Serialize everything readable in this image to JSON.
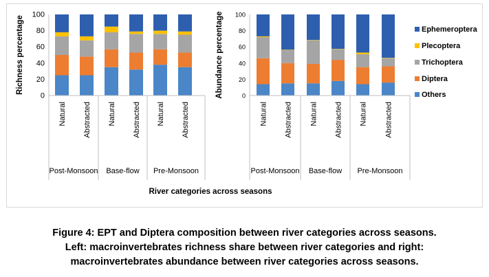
{
  "caption": {
    "line1": "Figure 4: EPT and Diptera composition between river categories across seasons.",
    "line2": "Left: macroinvertebrates richness share between river categories and right:",
    "line3": "macroinvertebrates abundance between river categories across seasons."
  },
  "xlabel": "River categories across seasons",
  "chart_data": [
    {
      "type": "bar",
      "stacked": true,
      "ylabel": "Richness percentage",
      "ylim": [
        0,
        100
      ],
      "yticks": [
        0,
        20,
        40,
        60,
        80,
        100
      ],
      "categories": [
        "Natural",
        "Abstracted",
        "Natural",
        "Abstracted",
        "Natural",
        "Abstracted"
      ],
      "groups": [
        "Post-Monsoon",
        "Base-flow",
        "Pre-Monsoon"
      ],
      "series": [
        {
          "name": "Others",
          "color": "#4a86c8",
          "values": [
            25,
            25,
            35,
            32,
            38,
            35
          ]
        },
        {
          "name": "Diptera",
          "color": "#ed7d31",
          "values": [
            25,
            23,
            22,
            21,
            19,
            18
          ]
        },
        {
          "name": "Trichoptera",
          "color": "#a5a5a5",
          "values": [
            23,
            20,
            21,
            23,
            19,
            22
          ]
        },
        {
          "name": "Plecoptera",
          "color": "#ffc000",
          "values": [
            5,
            5,
            7,
            3,
            4,
            4
          ]
        },
        {
          "name": "Ephemeroptera",
          "color": "#2e5fae",
          "values": [
            22,
            27,
            15,
            21,
            20,
            21
          ]
        }
      ]
    },
    {
      "type": "bar",
      "stacked": true,
      "ylabel": "Abundance percentage",
      "ylim": [
        0,
        100
      ],
      "yticks": [
        0,
        20,
        40,
        60,
        80,
        100
      ],
      "categories": [
        "Natural",
        "Abstracted",
        "Natural",
        "Abstracted",
        "Natural",
        "Abstracted"
      ],
      "groups": [
        "Post-Monsoon",
        "Base-flow",
        "Pre-Monsoon"
      ],
      "series": [
        {
          "name": "Others",
          "color": "#4a86c8",
          "values": [
            14,
            15,
            15,
            18,
            14,
            16
          ]
        },
        {
          "name": "Diptera",
          "color": "#ed7d31",
          "values": [
            32,
            25,
            24,
            26,
            21,
            20
          ]
        },
        {
          "name": "Trichoptera",
          "color": "#a5a5a5",
          "values": [
            26,
            16,
            29,
            13,
            16,
            10
          ]
        },
        {
          "name": "Plecoptera",
          "color": "#ffc000",
          "values": [
            1,
            0.5,
            0.5,
            0.5,
            2,
            0.5
          ]
        },
        {
          "name": "Ephemeroptera",
          "color": "#2e5fae",
          "values": [
            27,
            43.5,
            31.5,
            42.5,
            47,
            53.5
          ]
        }
      ]
    }
  ],
  "legend": {
    "position": "right",
    "items": [
      {
        "name": "Ephemeroptera",
        "color": "#2e5fae"
      },
      {
        "name": "Plecoptera",
        "color": "#ffc000"
      },
      {
        "name": "Trichoptera",
        "color": "#a5a5a5"
      },
      {
        "name": "Diptera",
        "color": "#ed7d31"
      },
      {
        "name": "Others",
        "color": "#4a86c8"
      }
    ]
  }
}
